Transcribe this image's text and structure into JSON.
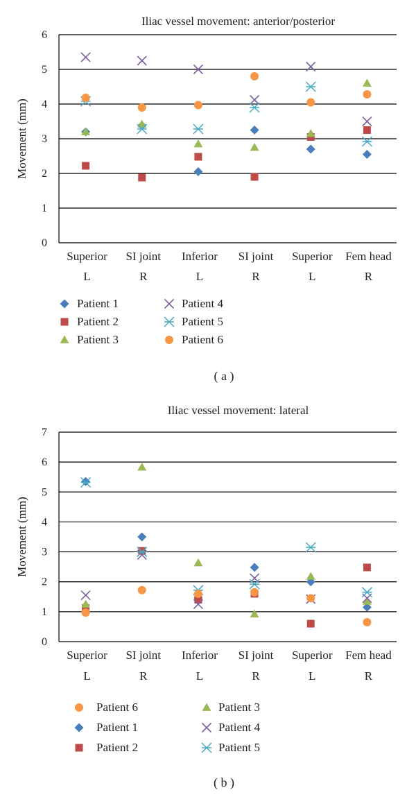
{
  "colors": {
    "Patient 1": "#4A7EBB",
    "Patient 2": "#BE4B48",
    "Patient 3": "#98B954",
    "Patient 4": "#7D60A0",
    "Patient 5": "#46AAC5",
    "Patient 6": "#F79646"
  },
  "chart_data": [
    {
      "type": "scatter",
      "title": "Iliac vessel movement: anterior/posterior",
      "ylabel": "Movement (mm)",
      "xlabel": "",
      "ylim": [
        0,
        6
      ],
      "yticks": [
        "0",
        "1",
        "2",
        "3",
        "4",
        "5",
        "6"
      ],
      "grid": true,
      "legend_position": "bottom",
      "panel_label": "( a )",
      "categories": [
        "Superior",
        "SI joint",
        "Inferior",
        "SI joint",
        "Superior",
        "Fem head"
      ],
      "sides": [
        "L",
        "R",
        "L",
        "R",
        "L",
        "R"
      ],
      "legend_columns": [
        [
          "Patient 1",
          "Patient 2",
          "Patient 3"
        ],
        [
          "Patient 4",
          "Patient 5",
          "Patient 6"
        ]
      ],
      "series": [
        {
          "name": "Patient 1",
          "marker": "diamond",
          "values": [
            3.2,
            3.38,
            2.05,
            3.25,
            2.7,
            2.55
          ]
        },
        {
          "name": "Patient 2",
          "marker": "square",
          "values": [
            2.22,
            1.88,
            2.48,
            1.9,
            3.05,
            3.25
          ]
        },
        {
          "name": "Patient 3",
          "marker": "triangle",
          "values": [
            3.2,
            3.42,
            2.85,
            2.75,
            3.15,
            4.6
          ]
        },
        {
          "name": "Patient 4",
          "marker": "x",
          "values": [
            5.35,
            5.25,
            5.0,
            4.12,
            5.08,
            3.5
          ]
        },
        {
          "name": "Patient 5",
          "marker": "star",
          "values": [
            4.08,
            3.28,
            3.28,
            3.9,
            4.5,
            2.92
          ]
        },
        {
          "name": "Patient 6",
          "marker": "circle",
          "values": [
            4.18,
            3.9,
            3.97,
            4.8,
            4.05,
            4.28
          ]
        }
      ]
    },
    {
      "type": "scatter",
      "title": "Iliac vessel movement: lateral",
      "ylabel": "Movement (mm)",
      "xlabel": "",
      "ylim": [
        0,
        7
      ],
      "yticks": [
        "0",
        "1",
        "2",
        "3",
        "4",
        "5",
        "6",
        "7"
      ],
      "grid": true,
      "legend_position": "bottom",
      "panel_label": "( b )",
      "categories": [
        "Superior",
        "SI joint",
        "Inferior",
        "SI joint",
        "Superior",
        "Fem head"
      ],
      "sides": [
        "L",
        "R",
        "L",
        "R",
        "L",
        "R"
      ],
      "legend_columns": [
        [
          "Patient 6",
          "Patient 1",
          "Patient 2"
        ],
        [
          "Patient 3",
          "Patient 4",
          "Patient 5"
        ]
      ],
      "series": [
        {
          "name": "Patient 1",
          "marker": "diamond",
          "values": [
            5.35,
            3.5,
            1.45,
            2.48,
            2.0,
            1.15
          ]
        },
        {
          "name": "Patient 2",
          "marker": "square",
          "values": [
            1.12,
            3.03,
            1.4,
            1.6,
            0.6,
            2.48
          ]
        },
        {
          "name": "Patient 3",
          "marker": "triangle",
          "values": [
            1.25,
            5.83,
            2.63,
            0.92,
            2.18,
            1.35
          ]
        },
        {
          "name": "Patient 4",
          "marker": "x",
          "values": [
            1.55,
            2.9,
            1.25,
            2.12,
            1.42,
            1.45
          ]
        },
        {
          "name": "Patient 5",
          "marker": "star",
          "values": [
            5.32,
            3.0,
            1.72,
            1.92,
            3.15,
            1.65
          ]
        },
        {
          "name": "Patient 6",
          "marker": "circle",
          "values": [
            0.97,
            1.72,
            1.6,
            1.65,
            1.45,
            0.65
          ]
        }
      ]
    }
  ]
}
